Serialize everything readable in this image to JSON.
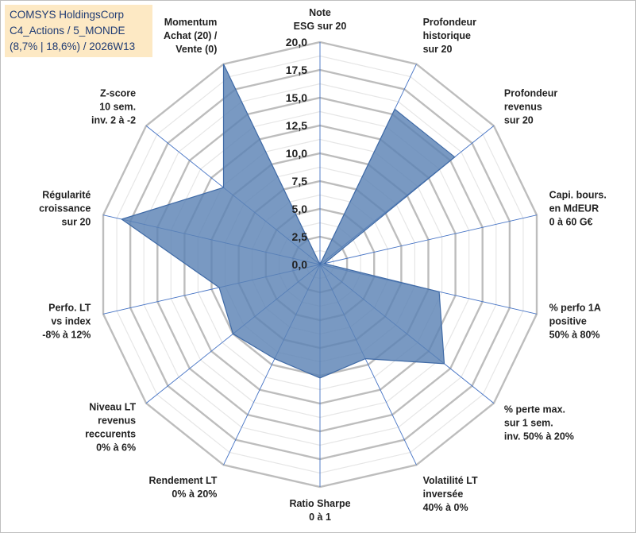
{
  "title_box": {
    "line1": "COMSYS HoldingsCorp",
    "line2": "C4_Actions / 5_MONDE",
    "line3": "(8,7% | 18,6%) / 2026W13"
  },
  "chart_data": {
    "type": "radar",
    "title": "COMSYS HoldingsCorp",
    "rmin": 0,
    "rmax": 20,
    "tick_step": 2.5,
    "tick_labels": [
      "0,0",
      "2,5",
      "5,0",
      "7,5",
      "10,0",
      "12,5",
      "15,0",
      "17,5",
      "20,0"
    ],
    "axes": [
      {
        "label": [
          "Note",
          "ESG sur 20"
        ],
        "value": 0
      },
      {
        "label": [
          "Profondeur",
          "historique",
          "sur 20"
        ],
        "value": 15.5
      },
      {
        "label": [
          "Profondeur",
          "revenus",
          "sur 20"
        ],
        "value": 15.5
      },
      {
        "label": [
          "Capi. bours.",
          "en MdEUR",
          "0 à 60 G€"
        ],
        "value": 0.4
      },
      {
        "label": [
          "% perfo 1A",
          "positive",
          "50% à 80%"
        ],
        "value": 11
      },
      {
        "label": [
          "% perte max.",
          "sur 1 sem.",
          "inv. 50% à 20%"
        ],
        "value": 14.3
      },
      {
        "label": [
          "Volatilité LT",
          "inversée",
          "40% à 0%"
        ],
        "value": 9.4
      },
      {
        "label": [
          "Ratio Sharpe",
          "0 à 1"
        ],
        "value": 10.2
      },
      {
        "label": [
          "Rendement LT",
          "0% à 20%"
        ],
        "value": 9.4
      },
      {
        "label": [
          "Niveau LT",
          "revenus",
          "reccurents",
          "0% à 6%"
        ],
        "value": 10
      },
      {
        "label": [
          "Perfo. LT",
          "vs index",
          "-8% à 12%"
        ],
        "value": 9.3
      },
      {
        "label": [
          "Régularité",
          "croissance",
          "sur 20"
        ],
        "value": 18.3
      },
      {
        "label": [
          "Z-score",
          "10 sem.",
          "inv. 2 à -2"
        ],
        "value": 11.1
      },
      {
        "label": [
          "Momentum",
          "Achat (20) /",
          "Vente (0)"
        ],
        "value": 20
      }
    ],
    "colors": {
      "fill": "#5b82b5",
      "stroke": "#3f6aa6",
      "grid": "#bdbdbd",
      "minor_grid": "#e6e6e6",
      "spoke": "#4472c4"
    }
  }
}
